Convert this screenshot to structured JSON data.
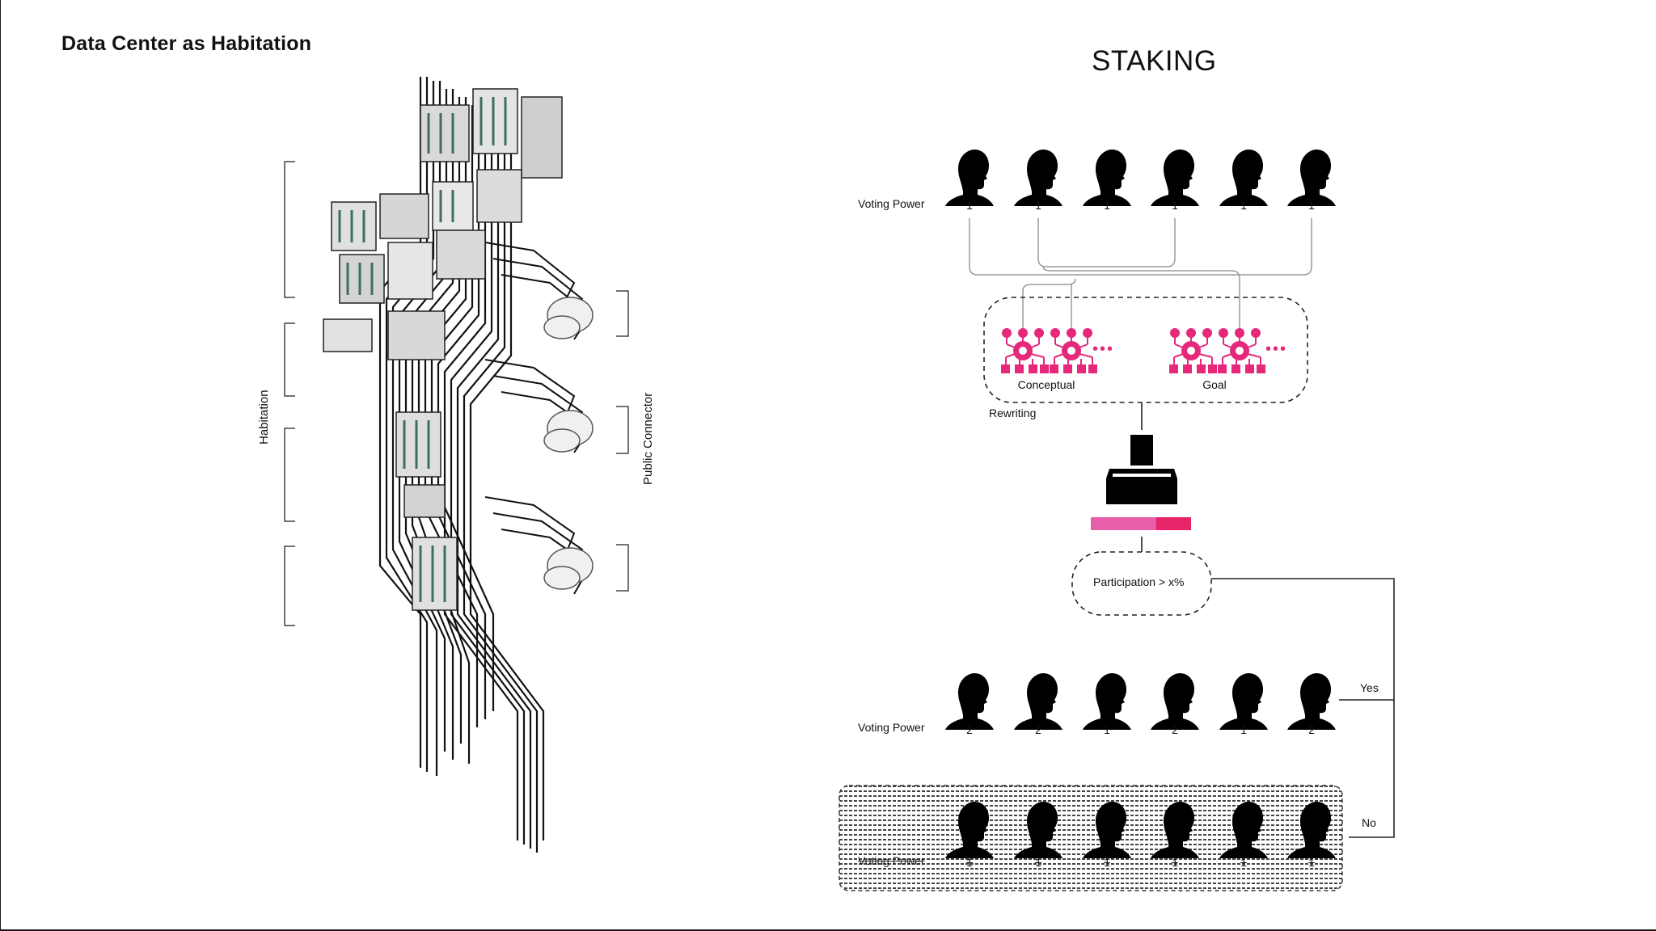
{
  "page": {
    "title": "Data Center as Habitation"
  },
  "architecture": {
    "left_label": "Habitation",
    "right_label": "Public Connector"
  },
  "staking": {
    "title": "STAKING",
    "voting_power_label": "Voting Power",
    "top_row": {
      "values": [
        "1",
        "1",
        "1",
        "1",
        "1",
        "1"
      ]
    },
    "agents": {
      "left_label": "Conceptual",
      "right_label": "Goal",
      "ellipsis": "•••"
    },
    "rewriting_label": "Rewriting",
    "participation_label": "Participation > x%",
    "yes_label": "Yes",
    "no_label": "No",
    "yes_row": {
      "values": [
        "2",
        "2",
        "1",
        "2",
        "1",
        "2"
      ]
    },
    "no_row": {
      "values": [
        "1",
        "1",
        "1",
        "1",
        "1",
        "1"
      ]
    },
    "bar": {
      "filled_fraction": 0.65,
      "color_light": "#e65fa8",
      "color_dark": "#e8246a"
    },
    "accent_color": "#e6287a"
  }
}
